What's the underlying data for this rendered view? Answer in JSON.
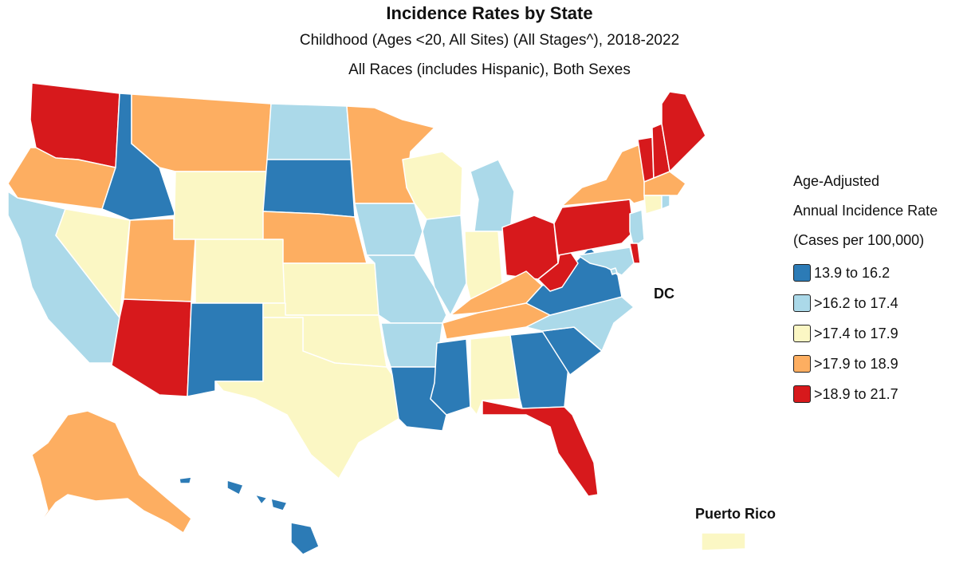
{
  "title": "Incidence Rates by State",
  "subtitle1": "Childhood (Ages <20, All Sites) (All Stages^), 2018-2022",
  "subtitle2": "All Races (includes Hispanic), Both Sexes",
  "legend": {
    "title_lines": [
      "Age-Adjusted",
      "Annual Incidence Rate",
      "(Cases per 100,000)"
    ],
    "classes": [
      {
        "label": "13.9 to 16.2",
        "color": "#2c7bb6"
      },
      {
        "label": ">16.2 to 17.4",
        "color": "#abd9e9"
      },
      {
        "label": ">17.4 to 17.9",
        "color": "#fbf7c4"
      },
      {
        "label": ">17.9 to 18.9",
        "color": "#fdae61"
      },
      {
        "label": ">18.9 to 21.7",
        "color": "#d7191c"
      }
    ]
  },
  "labels": {
    "dc": "DC",
    "puerto_rico": "Puerto Rico"
  },
  "states": {
    "WA": 4,
    "OR": 3,
    "CA": 1,
    "NV": 2,
    "ID": 0,
    "MT": 3,
    "WY": 2,
    "UT": 3,
    "AZ": 4,
    "CO": 2,
    "NM": 0,
    "ND": 1,
    "SD": 0,
    "NE": 3,
    "KS": 2,
    "OK": 2,
    "TX": 2,
    "MN": 3,
    "IA": 1,
    "MO": 1,
    "AR": 1,
    "LA": 0,
    "WI": 2,
    "IL": 1,
    "MI": 1,
    "IN": 2,
    "OH": 4,
    "KY": 3,
    "TN": 3,
    "MS": 0,
    "AL": 2,
    "GA": 0,
    "FL": 4,
    "SC": 0,
    "NC": 1,
    "VA": 0,
    "WV": 4,
    "PA": 4,
    "NY": 3,
    "NJ": 1,
    "DE": 4,
    "MD": 1,
    "DC": 1,
    "VT": 4,
    "NH": 4,
    "ME": 4,
    "MA": 3,
    "CT": 2,
    "RI": 1,
    "AK": 3,
    "HI": 0,
    "PR": 2
  }
}
